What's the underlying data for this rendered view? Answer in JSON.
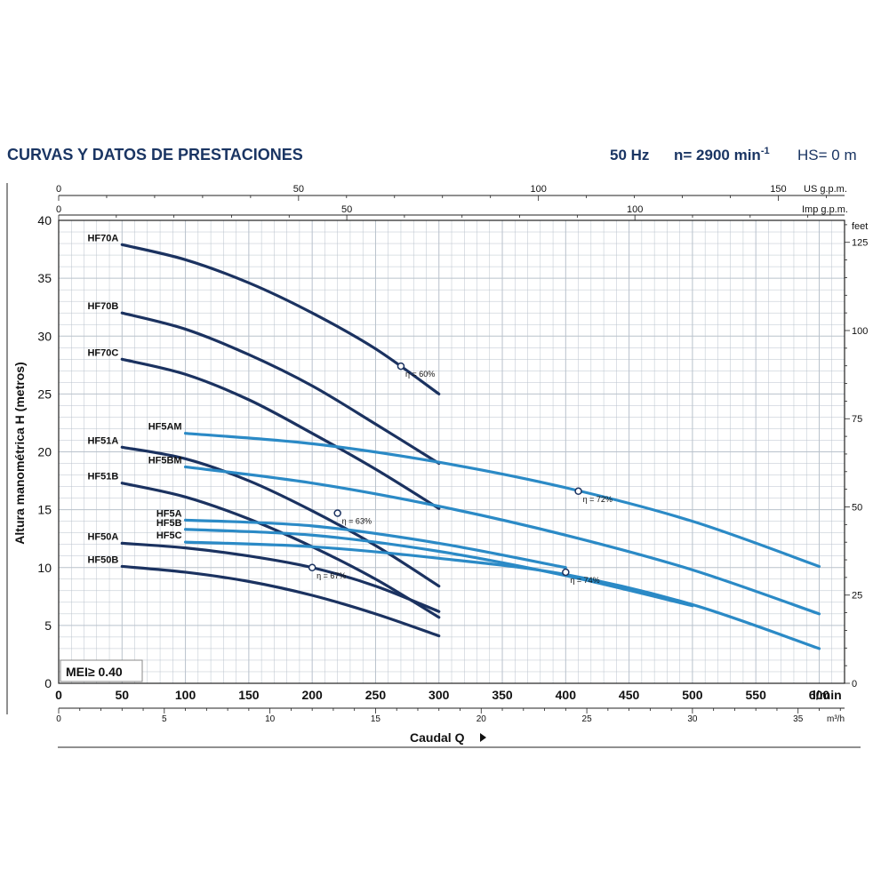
{
  "header": {
    "title": "CURVAS Y DATOS DE PRESTACIONES",
    "freq": "50 Hz",
    "speed": "n= 2900 min",
    "speed_exp": "-1",
    "hs": "HS= 0 m"
  },
  "mei": "MEI≥ 0.40",
  "caudal_label": "Caudal  Q",
  "colors": {
    "dark": "#1b3260",
    "light": "#2b8ac6",
    "grid": "#b9c2cc",
    "axis": "#222222",
    "title": "#1a3563"
  },
  "chart_data": {
    "type": "line",
    "title": "CURVAS Y DATOS DE PRESTACIONES",
    "xlabel": "Caudal Q",
    "x_unit": "l/min",
    "ylabel": "Altura manométrica H (metros)",
    "xlim": [
      0,
      620
    ],
    "ylim": [
      0,
      40
    ],
    "grid": true,
    "x_ticks": [
      "0",
      "50",
      "100",
      "150",
      "200",
      "250",
      "300",
      "350",
      "400",
      "450",
      "500",
      "550",
      "600"
    ],
    "y_ticks": [
      "0",
      "5",
      "10",
      "15",
      "20",
      "25",
      "30",
      "35",
      "40"
    ],
    "secondary_axes": {
      "us_gpm": {
        "label": "US g.p.m.",
        "ticks": [
          "0",
          "50",
          "100",
          "150"
        ]
      },
      "imp_gpm": {
        "label": "Imp g.p.m.",
        "ticks": [
          "0",
          "50",
          "100"
        ]
      },
      "m3h": {
        "label": "m³/h",
        "ticks": [
          "0",
          "5",
          "10",
          "15",
          "20",
          "25",
          "30",
          "35"
        ]
      },
      "feet": {
        "label": "feet",
        "ticks": [
          "0",
          "25",
          "50",
          "75",
          "100",
          "125"
        ]
      }
    },
    "series": [
      {
        "name": "HF70A",
        "group": "dark",
        "x": [
          50,
          100,
          150,
          200,
          250,
          300
        ],
        "y": [
          37.9,
          36.6,
          34.6,
          32.0,
          28.9,
          25.0
        ]
      },
      {
        "name": "HF70B",
        "group": "dark",
        "x": [
          50,
          100,
          150,
          200,
          250,
          300
        ],
        "y": [
          32.0,
          30.6,
          28.4,
          25.7,
          22.4,
          19.0
        ]
      },
      {
        "name": "HF70C",
        "group": "dark",
        "x": [
          50,
          100,
          150,
          200,
          250,
          300
        ],
        "y": [
          28.0,
          26.7,
          24.5,
          21.6,
          18.5,
          15.1
        ]
      },
      {
        "name": "HF51A",
        "group": "dark",
        "x": [
          50,
          100,
          150,
          200,
          250,
          300
        ],
        "y": [
          20.4,
          19.4,
          17.5,
          14.9,
          11.9,
          8.4
        ]
      },
      {
        "name": "HF51B",
        "group": "dark",
        "x": [
          50,
          100,
          150,
          200,
          250,
          300
        ],
        "y": [
          17.3,
          16.1,
          14.2,
          11.8,
          9.0,
          5.7
        ]
      },
      {
        "name": "HF50A",
        "group": "dark",
        "x": [
          50,
          100,
          150,
          200,
          250,
          300
        ],
        "y": [
          12.1,
          11.7,
          11.0,
          10.0,
          8.4,
          6.2
        ]
      },
      {
        "name": "HF50B",
        "group": "dark",
        "x": [
          50,
          100,
          150,
          200,
          250,
          300
        ],
        "y": [
          10.1,
          9.6,
          8.8,
          7.6,
          6.0,
          4.1
        ]
      },
      {
        "name": "HF5AM",
        "group": "light",
        "x": [
          100,
          200,
          300,
          400,
          500,
          600
        ],
        "y": [
          21.6,
          20.7,
          19.1,
          16.9,
          14.0,
          10.1
        ]
      },
      {
        "name": "HF5BM",
        "group": "light",
        "x": [
          100,
          200,
          300,
          400,
          500,
          600
        ],
        "y": [
          18.7,
          17.3,
          15.3,
          12.8,
          9.8,
          6.0
        ]
      },
      {
        "name": "HF5A",
        "group": "light",
        "x": [
          100,
          200,
          300,
          400
        ],
        "y": [
          14.1,
          13.6,
          12.1,
          10.0
        ]
      },
      {
        "name": "HF5B",
        "group": "light",
        "x": [
          100,
          200,
          300,
          400,
          500
        ],
        "y": [
          13.3,
          12.8,
          11.4,
          9.3,
          6.7
        ]
      },
      {
        "name": "HF5C",
        "group": "light",
        "x": [
          100,
          200,
          300,
          400,
          500,
          600
        ],
        "y": [
          12.2,
          11.8,
          10.8,
          9.4,
          6.8,
          3.0
        ]
      }
    ],
    "annotations": [
      {
        "text": "η = 60%",
        "x": 270,
        "y": 27.4
      },
      {
        "text": "η = 63%",
        "x": 220,
        "y": 14.7
      },
      {
        "text": "η = 67%",
        "x": 200,
        "y": 10.0
      },
      {
        "text": "η = 72%",
        "x": 410,
        "y": 16.6
      },
      {
        "text": "η = 74%",
        "x": 400,
        "y": 9.6
      }
    ]
  }
}
